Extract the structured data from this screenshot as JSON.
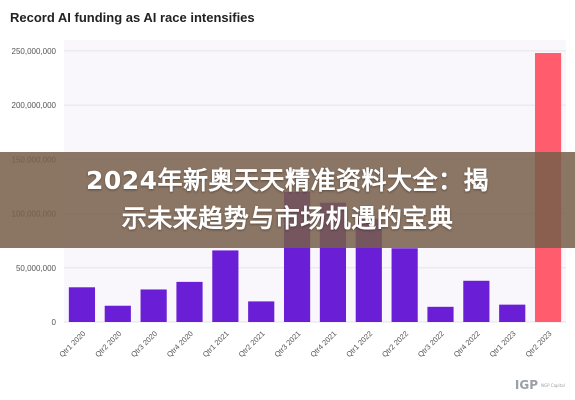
{
  "overlay": {
    "line1": "2024年新奥天天精准资料大全：揭",
    "line2": "示未来趋势与市场机遇的宝典"
  },
  "watermark": {
    "mark": "IGP",
    "text": "NGP Capital"
  },
  "chart_data": {
    "type": "bar",
    "title": "Record AI funding as AI race intensifies",
    "xlabel": "",
    "ylabel": "",
    "categories": [
      "Qtr1 2020",
      "Qtr2 2020",
      "Qtr3 2020",
      "Qtr4 2020",
      "Qtr1 2021",
      "Qtr2 2021",
      "Qtr3 2021",
      "Qtr4 2021",
      "Qtr1 2022",
      "Qtr2 2022",
      "Qtr3 2022",
      "Qtr4 2022",
      "Qtr1 2023",
      "Qtr2 2023"
    ],
    "values": [
      32000000,
      15000000,
      30000000,
      37000000,
      66000000,
      19000000,
      120000000,
      110000000,
      95000000,
      68000000,
      14000000,
      38000000,
      16000000,
      248000000
    ],
    "ylim": [
      0,
      260000000
    ],
    "yticks": [
      0,
      50000000,
      100000000,
      150000000,
      200000000,
      250000000
    ],
    "ytick_labels": [
      "0",
      "50,000,000",
      "100,000,000",
      "150,000,000",
      "200,000,000",
      "250,000,000"
    ],
    "grid": true,
    "legend": "none",
    "colors": {
      "bar": "#6a1fd6",
      "highlight": "#ff5c6e",
      "highlight_category": "Qtr2 2023",
      "plot_background": "#faf7fc"
    }
  }
}
